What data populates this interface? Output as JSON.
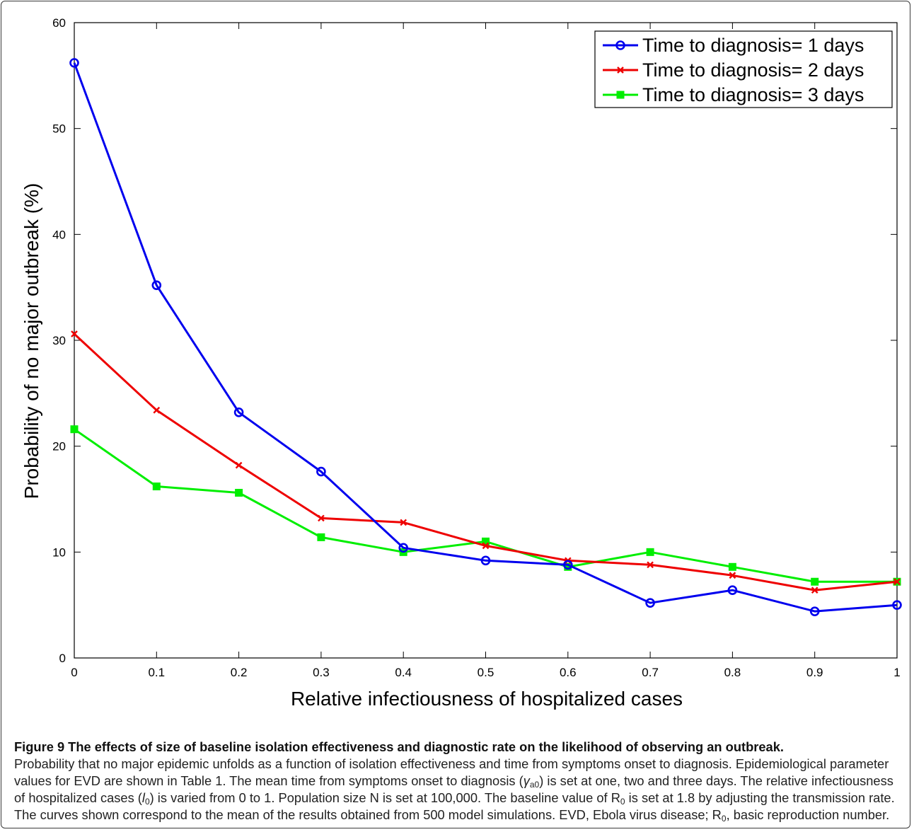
{
  "figure": {
    "caption_title": "Figure 9 The effects of size of baseline isolation effectiveness and diagnostic rate on the likelihood of observing an outbreak.",
    "caption_text": {
      "p1": "Probability that no major epidemic unfolds as a function of isolation effectiveness and time from symptoms onset to diagnosis. Epidemiological parameter values for EVD are shown in Table 1. The mean time from symptoms onset to diagnosis (",
      "gamma_sym": "γ",
      "gamma_sub": "a0",
      "p2": ") is set at one, two and three days. The relative infectiousness of hospitalized cases (",
      "l_sym": "l",
      "l_sub": "0",
      "p3": ") is varied from 0 to 1. Population size N is set at 100,000. The baseline value of R",
      "r_sub": "0",
      "p4": " is set at 1.8 by adjusting the transmission rate. The curves shown correspond to the mean of the results obtained from 500 model simulations. EVD, Ebola virus disease; R",
      "r_sub2": "0",
      "p5": ", basic reproduction number."
    }
  },
  "chart_data": {
    "type": "line",
    "title": "",
    "xlabel": "Relative infectiousness of hospitalized cases",
    "ylabel": "Probability of no major outbreak (%)",
    "xlim": [
      0,
      1
    ],
    "ylim": [
      0,
      60
    ],
    "x_ticks": [
      "0",
      "0.1",
      "0.2",
      "0.3",
      "0.4",
      "0.5",
      "0.6",
      "0.7",
      "0.8",
      "0.9",
      "1"
    ],
    "y_ticks": [
      "0",
      "10",
      "20",
      "30",
      "40",
      "50",
      "60"
    ],
    "grid": false,
    "legend_position": "top-right",
    "x": [
      0,
      0.1,
      0.2,
      0.3,
      0.4,
      0.5,
      0.6,
      0.7,
      0.8,
      0.9,
      1.0
    ],
    "series": [
      {
        "name": "Time to diagnosis= 1 days",
        "color": "#0000ee",
        "marker": "circle",
        "values": [
          56.2,
          35.2,
          23.2,
          17.6,
          10.4,
          9.2,
          8.8,
          5.2,
          6.4,
          4.4,
          5.0
        ]
      },
      {
        "name": "Time to diagnosis= 2 days",
        "color": "#ee0000",
        "marker": "x",
        "values": [
          30.6,
          23.4,
          18.2,
          13.2,
          12.8,
          10.6,
          9.2,
          8.8,
          7.8,
          6.4,
          7.2
        ]
      },
      {
        "name": "Time to diagnosis= 3 days",
        "color": "#00ee00",
        "marker": "square",
        "values": [
          21.6,
          16.2,
          15.6,
          11.4,
          10.0,
          11.0,
          8.6,
          10.0,
          8.6,
          7.2,
          7.2
        ]
      }
    ]
  }
}
